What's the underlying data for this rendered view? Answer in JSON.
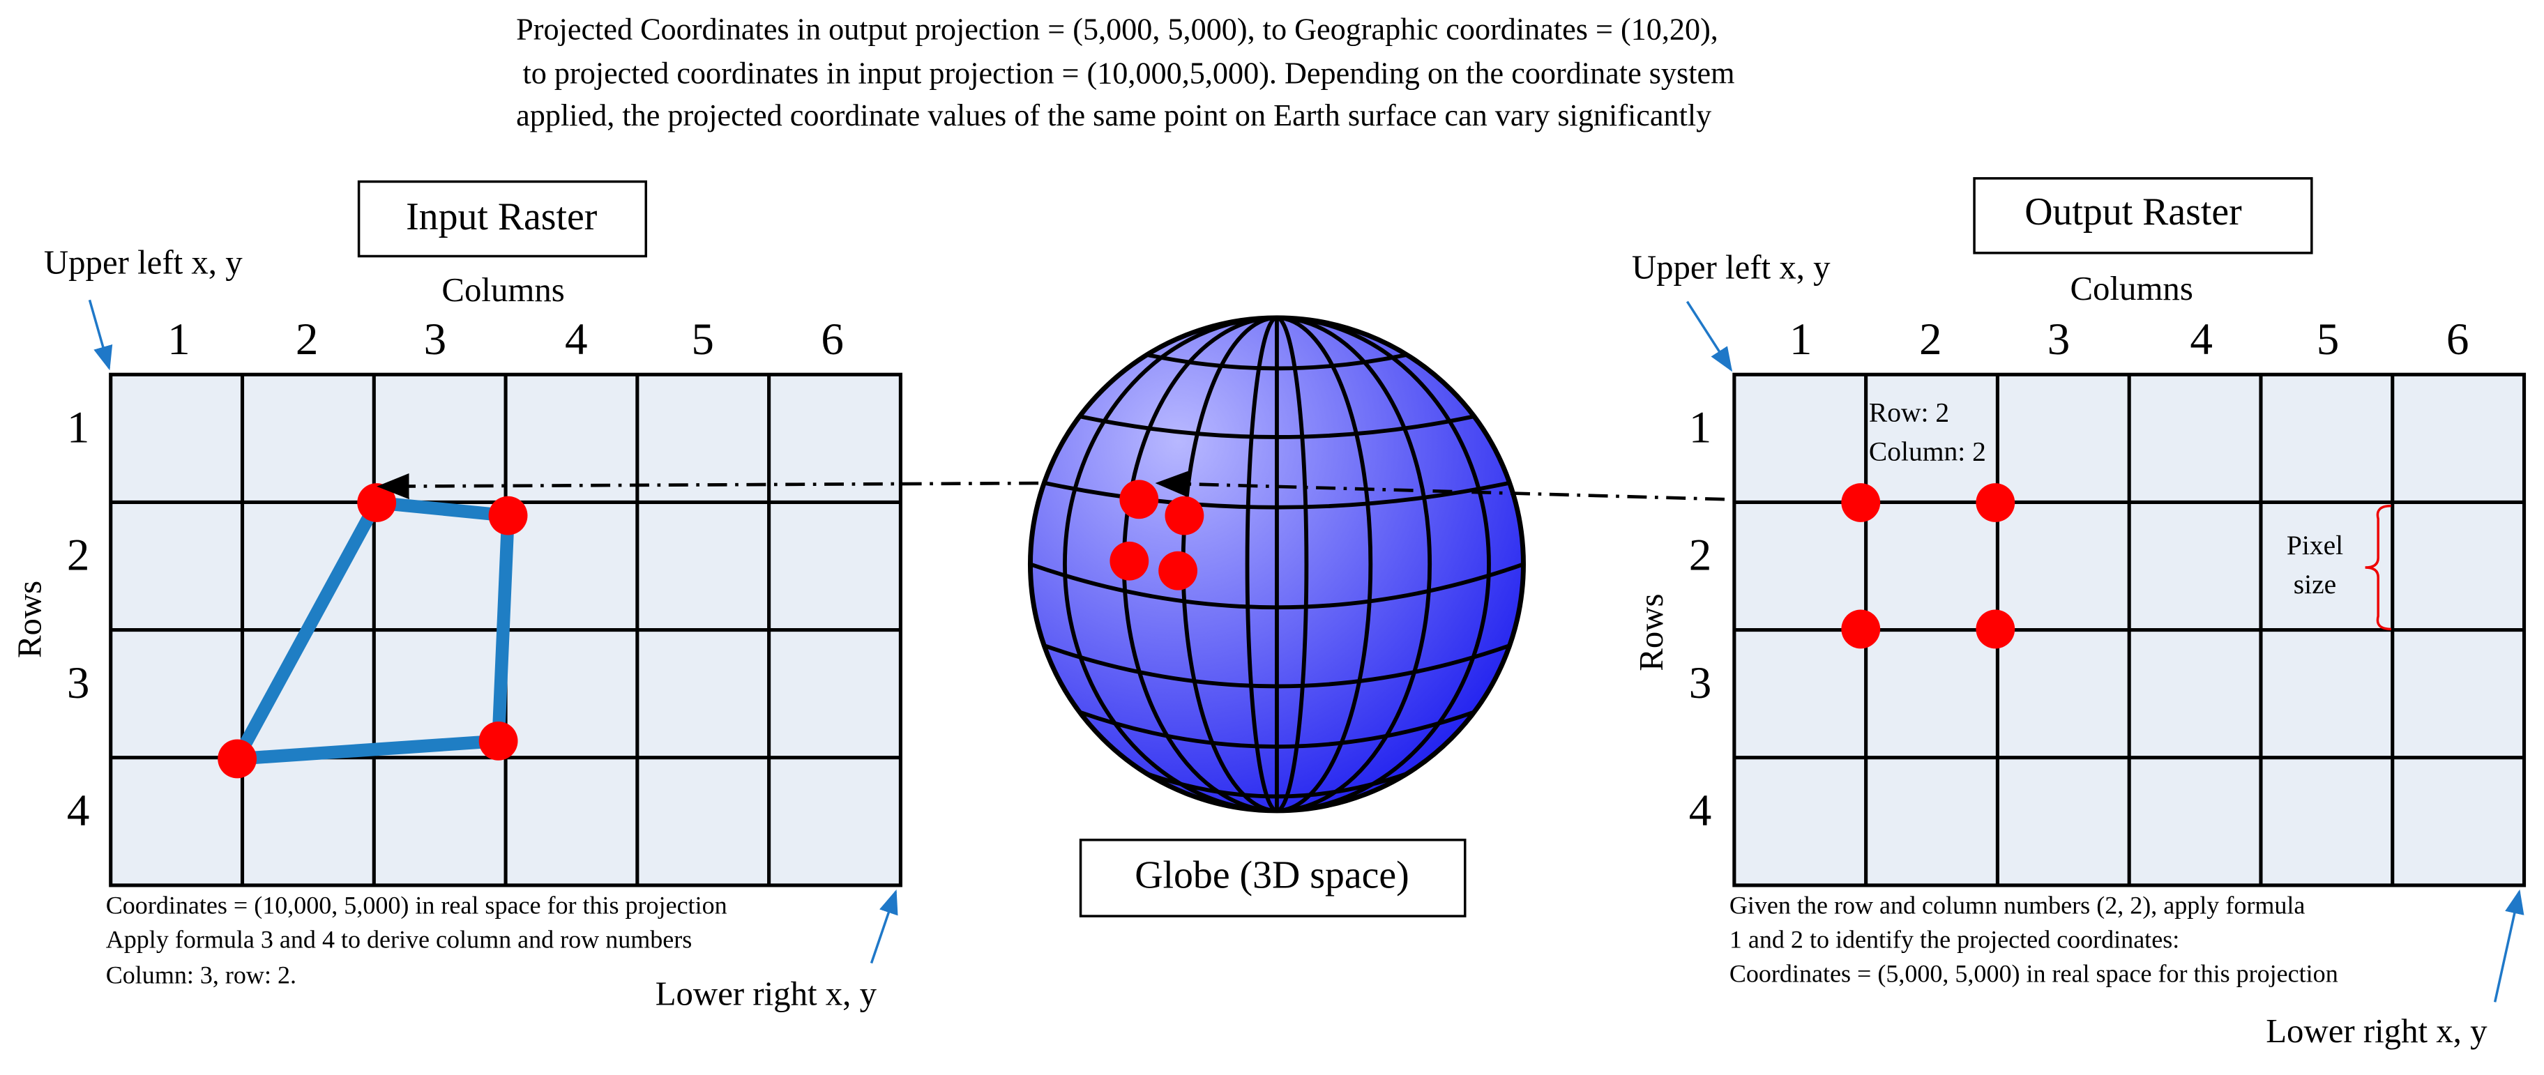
{
  "caption": {
    "lines": [
      "Projected Coordinates in output projection = (5,000, 5,000), to Geographic coordinates = (10,20),",
      "to projected coordinates in input projection = (10,000,5,000).  Depending on the coordinate system",
      "applied, the projected coordinate values of the same point on Earth surface can vary significantly"
    ]
  },
  "input_raster": {
    "title": "Input Raster",
    "upper_left": "Upper left x, y",
    "lower_right": "Lower right x, y",
    "columns_label": "Columns",
    "rows_label": "Rows",
    "column_numbers": [
      "1",
      "2",
      "3",
      "4",
      "5",
      "6"
    ],
    "row_numbers": [
      "1",
      "2",
      "3",
      "4"
    ],
    "notes": [
      "Coordinates = (10,000, 5,000) in real space for this projection",
      "Apply formula 3 and 4 to derive column and row numbers",
      "Column: 3, row: 2."
    ]
  },
  "globe": {
    "label": "Globe (3D space)"
  },
  "output_raster": {
    "title": "Output Raster",
    "upper_left": "Upper left x, y",
    "lower_right": "Lower right x, y",
    "columns_label": "Columns",
    "rows_label": "Rows",
    "column_numbers": [
      "1",
      "2",
      "3",
      "4",
      "5",
      "6"
    ],
    "row_numbers": [
      "1",
      "2",
      "3",
      "4"
    ],
    "cell_label": [
      "Row: 2",
      "Column: 2"
    ],
    "pixel_size": [
      "Pixel",
      "size"
    ],
    "notes": [
      "Given the row and column numbers (2, 2), apply formula",
      "1 and 2 to identify the projected coordinates:",
      "Coordinates = (5,000, 5,000) in real space for this projection"
    ]
  }
}
